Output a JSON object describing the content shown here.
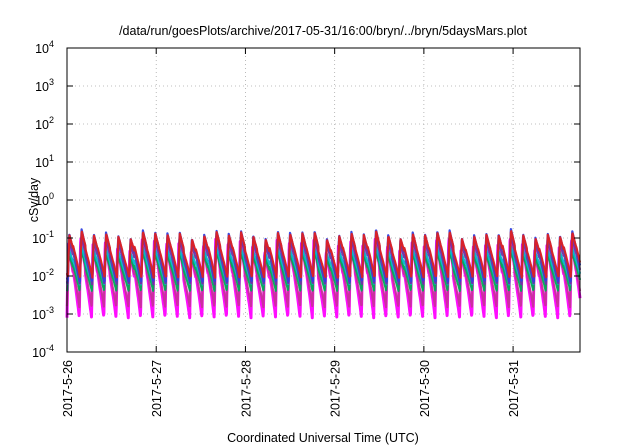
{
  "chart_data": {
    "type": "line",
    "title": "/data/run/goesPlots/archive/2017-05-31/16:00/bryn/../bryn/5daysMars.plot",
    "xlabel": "Coordinated Universal Time (UTC)",
    "ylabel": "cSv/day",
    "y_scale": "log",
    "ylim": [
      0.0001,
      10000
    ],
    "xlim": [
      "2017-05-26T00:00",
      "2017-05-31T18:00"
    ],
    "grid": true,
    "y_ticks": [
      {
        "value": 0.0001,
        "base": "10",
        "exp": "-4"
      },
      {
        "value": 0.001,
        "base": "10",
        "exp": "-3"
      },
      {
        "value": 0.01,
        "base": "10",
        "exp": "-2"
      },
      {
        "value": 0.1,
        "base": "10",
        "exp": "-1"
      },
      {
        "value": 1,
        "base": "10",
        "exp": "0"
      },
      {
        "value": 10,
        "base": "10",
        "exp": "1"
      },
      {
        "value": 100,
        "base": "10",
        "exp": "2"
      },
      {
        "value": 1000,
        "base": "10",
        "exp": "3"
      },
      {
        "value": 10000,
        "base": "10",
        "exp": "4"
      }
    ],
    "x_ticks": [
      {
        "value": "2017-05-26T00:00",
        "label": "2017-5-26"
      },
      {
        "value": "2017-05-27T00:00",
        "label": "2017-5-27"
      },
      {
        "value": "2017-05-28T00:00",
        "label": "2017-5-28"
      },
      {
        "value": "2017-05-29T00:00",
        "label": "2017-5-29"
      },
      {
        "value": "2017-05-30T00:00",
        "label": "2017-5-30"
      },
      {
        "value": "2017-05-31T00:00",
        "label": "2017-5-31"
      }
    ],
    "oscillation_period_hours": 3.3,
    "bands": [
      {
        "color": "#ff00ff",
        "peak": 0.07,
        "trough": 0.0008
      },
      {
        "color": "#c8329a",
        "peak": 0.05,
        "trough": 0.0015
      },
      {
        "color": "#00aa55",
        "peak": 0.04,
        "trough": 0.004
      },
      {
        "color": "#00bbcc",
        "peak": 0.05,
        "trough": 0.006
      },
      {
        "color": "#7030a0",
        "peak": 0.09,
        "trough": 0.006
      },
      {
        "color": "#3040e0",
        "peak": 0.13,
        "trough": 0.007
      },
      {
        "color": "#e02020",
        "peak": 0.12,
        "trough": 0.009
      }
    ]
  }
}
